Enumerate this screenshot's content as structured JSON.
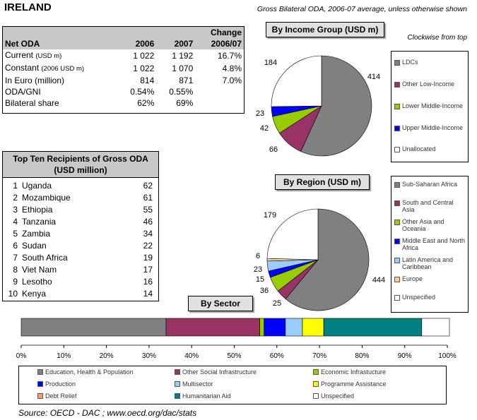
{
  "header": {
    "title": "IRELAND",
    "subtitle": "Gross Bilateral ODA, 2006-07 average, unless otherwise shown",
    "clockwise_note": "Clockwise from top"
  },
  "net_oda": {
    "headers": [
      "Net ODA",
      "2006",
      "2007",
      "Change\n2006/07"
    ],
    "header_change_line1": "Change",
    "header_change_line2": "2006/07",
    "rows": [
      {
        "label": "Current",
        "unit": "(USD m)",
        "v2006": "1 022",
        "v2007": "1 192",
        "change": "16.7%"
      },
      {
        "label": "Constant",
        "unit": "(2006 USD m)",
        "v2006": "1 022",
        "v2007": "1 070",
        "change": "4.8%"
      },
      {
        "label": "In Euro (million)",
        "unit": "",
        "v2006": "814",
        "v2007": "871",
        "change": "7.0%"
      },
      {
        "label": "ODA/GNI",
        "unit": "",
        "v2006": "0.54%",
        "v2007": "0.55%",
        "change": ""
      },
      {
        "label": "Bilateral share",
        "unit": "",
        "v2006": "62%",
        "v2007": "69%",
        "change": ""
      }
    ]
  },
  "top_recipients": {
    "title_line1": "Top Ten Recipients of Gross ODA",
    "title_line2": "(USD million)",
    "rows": [
      {
        "rank": "1",
        "name": "Uganda",
        "value": "62"
      },
      {
        "rank": "2",
        "name": "Mozambique",
        "value": "61"
      },
      {
        "rank": "3",
        "name": "Ethiopia",
        "value": "55"
      },
      {
        "rank": "4",
        "name": "Tanzania",
        "value": "46"
      },
      {
        "rank": "5",
        "name": "Zambia",
        "value": "34"
      },
      {
        "rank": "6",
        "name": "Sudan",
        "value": "22"
      },
      {
        "rank": "7",
        "name": "South Africa",
        "value": "19"
      },
      {
        "rank": "8",
        "name": "Viet Nam",
        "value": "17"
      },
      {
        "rank": "9",
        "name": "Lesotho",
        "value": "16"
      },
      {
        "rank": "10",
        "name": "Kenya",
        "value": "14"
      }
    ]
  },
  "colors": {
    "grey": "#808080",
    "maroon": "#993366",
    "lime": "#99cc00",
    "blue": "#0000ff",
    "white": "#ffffff",
    "lightblue": "#99ccff",
    "yellow": "#ffff00",
    "salmon": "#ff9966",
    "teal": "#008080",
    "orange": "#ffcc99"
  },
  "chart_data": [
    {
      "type": "pie",
      "title": "By Income Group (USD m)",
      "labels": [
        "LDCs",
        "Other Low-Income",
        "Lower Middle-Income",
        "Upper Middle-Income",
        "Unallocated"
      ],
      "values": [
        414,
        66,
        42,
        23,
        184
      ],
      "colors": [
        "#808080",
        "#993366",
        "#99cc00",
        "#0000ff",
        "#ffffff"
      ],
      "direction": "clockwise from top"
    },
    {
      "type": "pie",
      "title": "By Region (USD m)",
      "labels": [
        "Sub-Saharan Africa",
        "South and Central Asia",
        "Other Asia and Oceania",
        "Middle East and North Africa",
        "Latin America and Caribbean",
        "Europe",
        "Unspecified"
      ],
      "values": [
        444,
        25,
        36,
        15,
        23,
        6,
        179
      ],
      "value_labels": [
        "444",
        "25",
        "36",
        "15",
        "23",
        "6",
        "179"
      ],
      "colors": [
        "#808080",
        "#993366",
        "#99cc00",
        "#0000ff",
        "#99ccff",
        "#ffcc99",
        "#ffffff"
      ],
      "direction": "clockwise from top"
    },
    {
      "type": "bar",
      "orientation": "horizontal-stacked-100",
      "title": "By Sector",
      "labels": [
        "Education, Health & Population",
        "Other Social Infrastructure",
        "Economic Infrastucture",
        "Production",
        "Multisector",
        "Programme Assistance",
        "Debt Relief",
        "Humanitarian Aid",
        "Unspecified"
      ],
      "values": [
        34,
        22,
        1,
        5,
        4,
        5,
        0,
        23,
        6.5
      ],
      "colors": [
        "#808080",
        "#993366",
        "#99cc00",
        "#0000ff",
        "#99ccff",
        "#ffff00",
        "#ff9966",
        "#008080",
        "#ffffff"
      ],
      "xticks": [
        "0%",
        "10%",
        "20%",
        "30%",
        "40%",
        "50%",
        "60%",
        "70%",
        "80%",
        "90%",
        "100%"
      ],
      "xlim": [
        0,
        100
      ]
    }
  ],
  "source": "Source:  OECD - DAC ; www.oecd.org/dac/stats"
}
